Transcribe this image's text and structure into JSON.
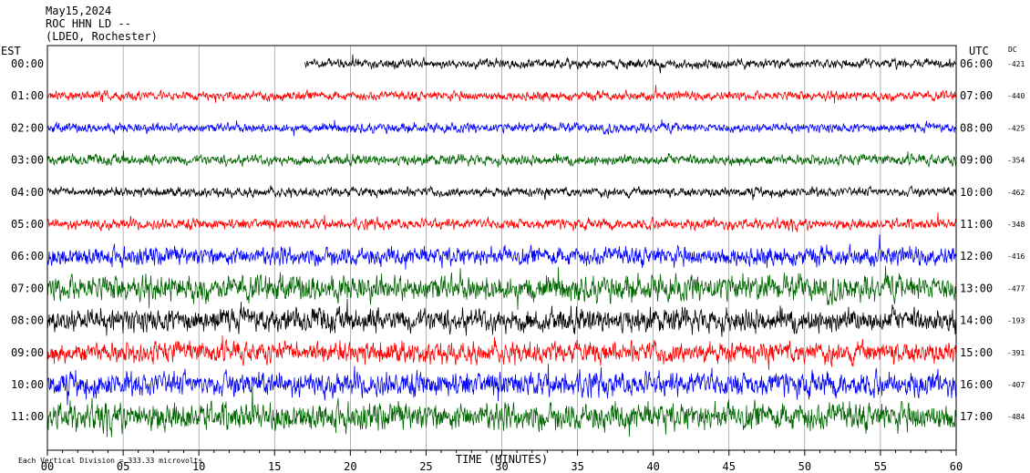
{
  "header": {
    "line1": "May15,2024",
    "line2": "ROC HHN LD --",
    "line3": "(LDEO, Rochester)"
  },
  "chart_data": {
    "type": "line",
    "title": "May15,2024",
    "subtitle": "ROC HHN LD -- (LDEO, Rochester)",
    "xlabel": "TIME (MINUTES)",
    "left_axis_label": "EST",
    "right_axis_label": "UTC",
    "dc_label": "DC",
    "xlim": [
      0,
      60
    ],
    "x_ticks": [
      "00",
      "05",
      "10",
      "15",
      "20",
      "25",
      "30",
      "35",
      "40",
      "45",
      "50",
      "55",
      "60"
    ],
    "grid": "vertical lines each minute",
    "scale_note": "Each Vertical Division =  333.33 microvolts",
    "trace_colors": [
      "#000000",
      "#ff0000",
      "#0000ff",
      "#006400"
    ],
    "rows": [
      {
        "est": "00:00",
        "utc": "06:00",
        "dc": "-421",
        "color": "#000000",
        "amp": 0.35,
        "start_min": 17
      },
      {
        "est": "01:00",
        "utc": "07:00",
        "dc": "-440",
        "color": "#ff0000",
        "amp": 0.35,
        "start_min": 0
      },
      {
        "est": "02:00",
        "utc": "08:00",
        "dc": "-425",
        "color": "#0000ff",
        "amp": 0.35,
        "start_min": 0
      },
      {
        "est": "03:00",
        "utc": "09:00",
        "dc": "-354",
        "color": "#006400",
        "amp": 0.4,
        "start_min": 0
      },
      {
        "est": "04:00",
        "utc": "10:00",
        "dc": "-462",
        "color": "#000000",
        "amp": 0.35,
        "start_min": 0
      },
      {
        "est": "05:00",
        "utc": "11:00",
        "dc": "-348",
        "color": "#ff0000",
        "amp": 0.4,
        "start_min": 0
      },
      {
        "est": "06:00",
        "utc": "12:00",
        "dc": "-416",
        "color": "#0000ff",
        "amp": 0.7,
        "start_min": 0
      },
      {
        "est": "07:00",
        "utc": "13:00",
        "dc": "-477",
        "color": "#006400",
        "amp": 0.95,
        "start_min": 0
      },
      {
        "est": "08:00",
        "utc": "14:00",
        "dc": "-193",
        "color": "#000000",
        "amp": 0.9,
        "start_min": 0
      },
      {
        "est": "09:00",
        "utc": "15:00",
        "dc": "-391",
        "color": "#ff0000",
        "amp": 0.8,
        "start_min": 0
      },
      {
        "est": "10:00",
        "utc": "16:00",
        "dc": "-407",
        "color": "#0000ff",
        "amp": 0.9,
        "start_min": 0
      },
      {
        "est": "11:00",
        "utc": "17:00",
        "dc": "-484",
        "color": "#006400",
        "amp": 1.05,
        "start_min": 0
      }
    ]
  }
}
